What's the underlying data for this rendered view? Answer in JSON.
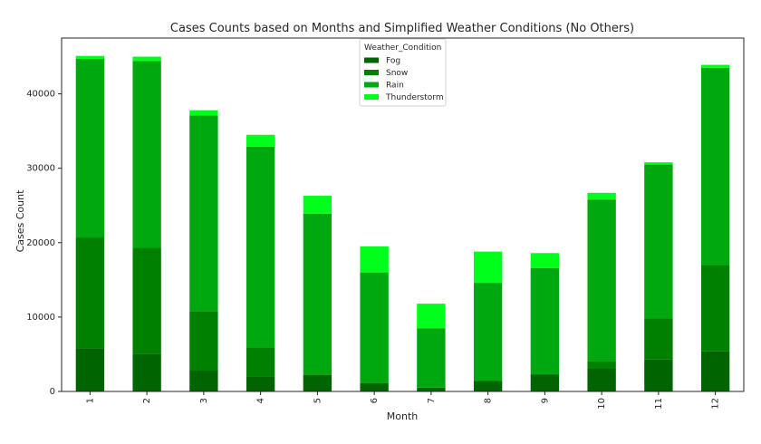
{
  "chart_data": {
    "type": "bar",
    "stacked": true,
    "title": "Cases Counts based on Months and Simplified Weather Conditions (No Others)",
    "xlabel": "Month",
    "ylabel": "Cases Count",
    "categories": [
      "1",
      "2",
      "3",
      "4",
      "5",
      "6",
      "7",
      "8",
      "9",
      "10",
      "11",
      "12"
    ],
    "ylim": [
      0,
      47500
    ],
    "yticks": [
      0,
      10000,
      20000,
      30000,
      40000
    ],
    "ytick_labels": [
      "0",
      "10000",
      "20000",
      "30000",
      "40000"
    ],
    "grid": false,
    "legend": {
      "title": "Weather_Condition",
      "position": "top-center"
    },
    "series": [
      {
        "name": "Fog",
        "color": "#006400",
        "values": [
          5800,
          5000,
          2800,
          2000,
          2200,
          1100,
          500,
          1400,
          2300,
          3100,
          4300,
          5400
        ]
      },
      {
        "name": "Snow",
        "color": "#008000",
        "values": [
          14900,
          14300,
          8000,
          3900,
          100,
          100,
          0,
          0,
          0,
          1000,
          5500,
          11600
        ]
      },
      {
        "name": "Rain",
        "color": "#00a80f",
        "values": [
          24000,
          25100,
          26300,
          27000,
          21600,
          14800,
          8000,
          13200,
          14300,
          21700,
          20700,
          26500
        ]
      },
      {
        "name": "Thunderstorm",
        "color": "#00ff1a",
        "values": [
          400,
          600,
          700,
          1600,
          2400,
          3500,
          3300,
          4200,
          2000,
          900,
          300,
          400
        ]
      }
    ]
  }
}
